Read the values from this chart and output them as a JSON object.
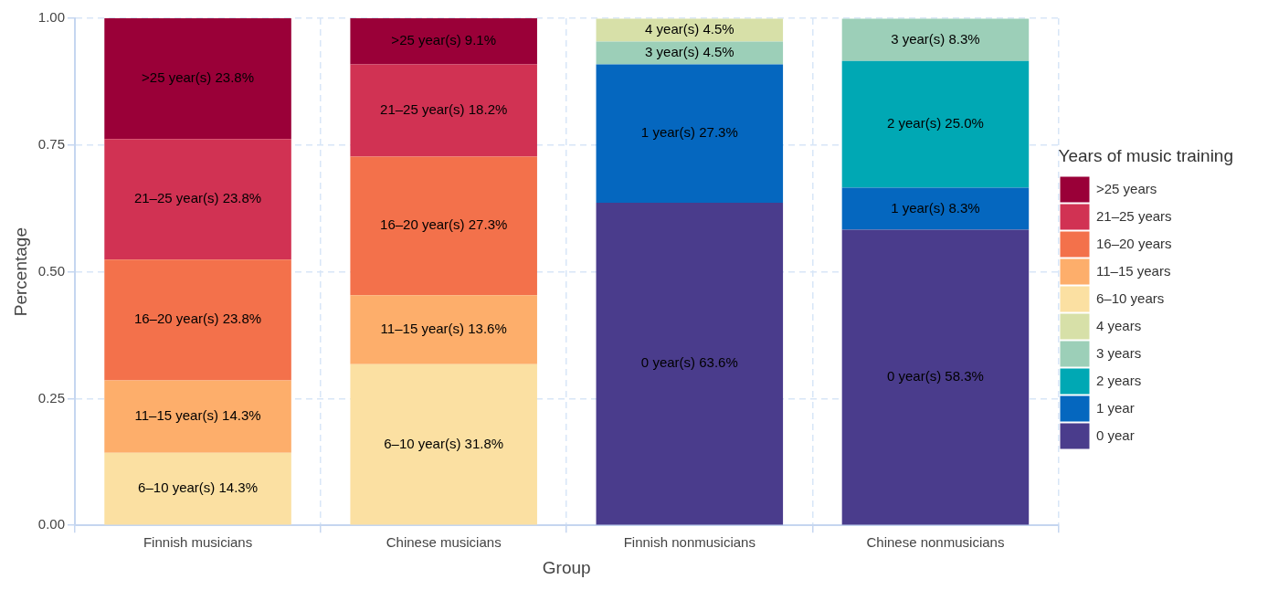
{
  "chart_data": {
    "type": "bar",
    "stacked": true,
    "xlabel": "Group",
    "ylabel": "Percentage",
    "legend_title": "Years of music training",
    "legend": "right",
    "grid": true,
    "categories": [
      "Finnish musicians",
      "Chinese musicians",
      "Finnish nonmusicians",
      "Chinese nonmusicians"
    ],
    "ylim": [
      0,
      1
    ],
    "yticks": [
      {
        "value": 0,
        "label": "0.00"
      },
      {
        "value": 0.25,
        "label": "0.25"
      },
      {
        "value": 0.5,
        "label": "0.50"
      },
      {
        "value": 0.75,
        "label": "0.75"
      },
      {
        "value": 1,
        "label": "1.00"
      }
    ],
    "series": [
      {
        "name": "0 year",
        "color": "#4a3c8c",
        "values": [
          null,
          null,
          0.636,
          0.583
        ],
        "value_labels": [
          null,
          null,
          "0 year(s) 63.6%",
          "0 year(s) 58.3%"
        ]
      },
      {
        "name": "1 year",
        "color": "#0567bf",
        "values": [
          null,
          null,
          0.273,
          0.083
        ],
        "value_labels": [
          null,
          null,
          "1 year(s) 27.3%",
          "1 year(s) 8.3%"
        ]
      },
      {
        "name": "2 years",
        "color": "#00a8b4",
        "values": [
          null,
          null,
          null,
          0.25
        ],
        "value_labels": [
          null,
          null,
          null,
          "2 year(s) 25.0%"
        ]
      },
      {
        "name": "3 years",
        "color": "#9ccfb8",
        "values": [
          null,
          null,
          0.045,
          0.083
        ],
        "value_labels": [
          null,
          null,
          "3 year(s) 4.5%",
          "3 year(s) 8.3%"
        ]
      },
      {
        "name": "4 years",
        "color": "#d7e0a8",
        "values": [
          null,
          null,
          0.045,
          null
        ],
        "value_labels": [
          null,
          null,
          "4 year(s) 4.5%",
          null
        ]
      },
      {
        "name": "6–10 years",
        "color": "#fbe0a2",
        "values": [
          0.143,
          0.318,
          null,
          null
        ],
        "value_labels": [
          "6–10 year(s) 14.3%",
          "6–10 year(s) 31.8%",
          null,
          null
        ]
      },
      {
        "name": "11–15 years",
        "color": "#fdae6b",
        "values": [
          0.143,
          0.136,
          null,
          null
        ],
        "value_labels": [
          "11–15 year(s) 14.3%",
          "11–15 year(s) 13.6%",
          null,
          null
        ]
      },
      {
        "name": "16–20 years",
        "color": "#f3714b",
        "values": [
          0.238,
          0.273,
          null,
          null
        ],
        "value_labels": [
          "16–20 year(s) 23.8%",
          "16–20 year(s) 27.3%",
          null,
          null
        ]
      },
      {
        "name": "21–25 years",
        "color": "#d13253",
        "values": [
          0.238,
          0.182,
          null,
          null
        ],
        "value_labels": [
          "21–25 year(s) 23.8%",
          "21–25 year(s) 18.2%",
          null,
          null
        ]
      },
      {
        "name": ">25 years",
        "color": "#9a0038",
        "values": [
          0.238,
          0.091,
          null,
          null
        ],
        "value_labels": [
          ">25 year(s) 23.8%",
          ">25 year(s) 9.1%",
          null,
          null
        ]
      }
    ]
  }
}
